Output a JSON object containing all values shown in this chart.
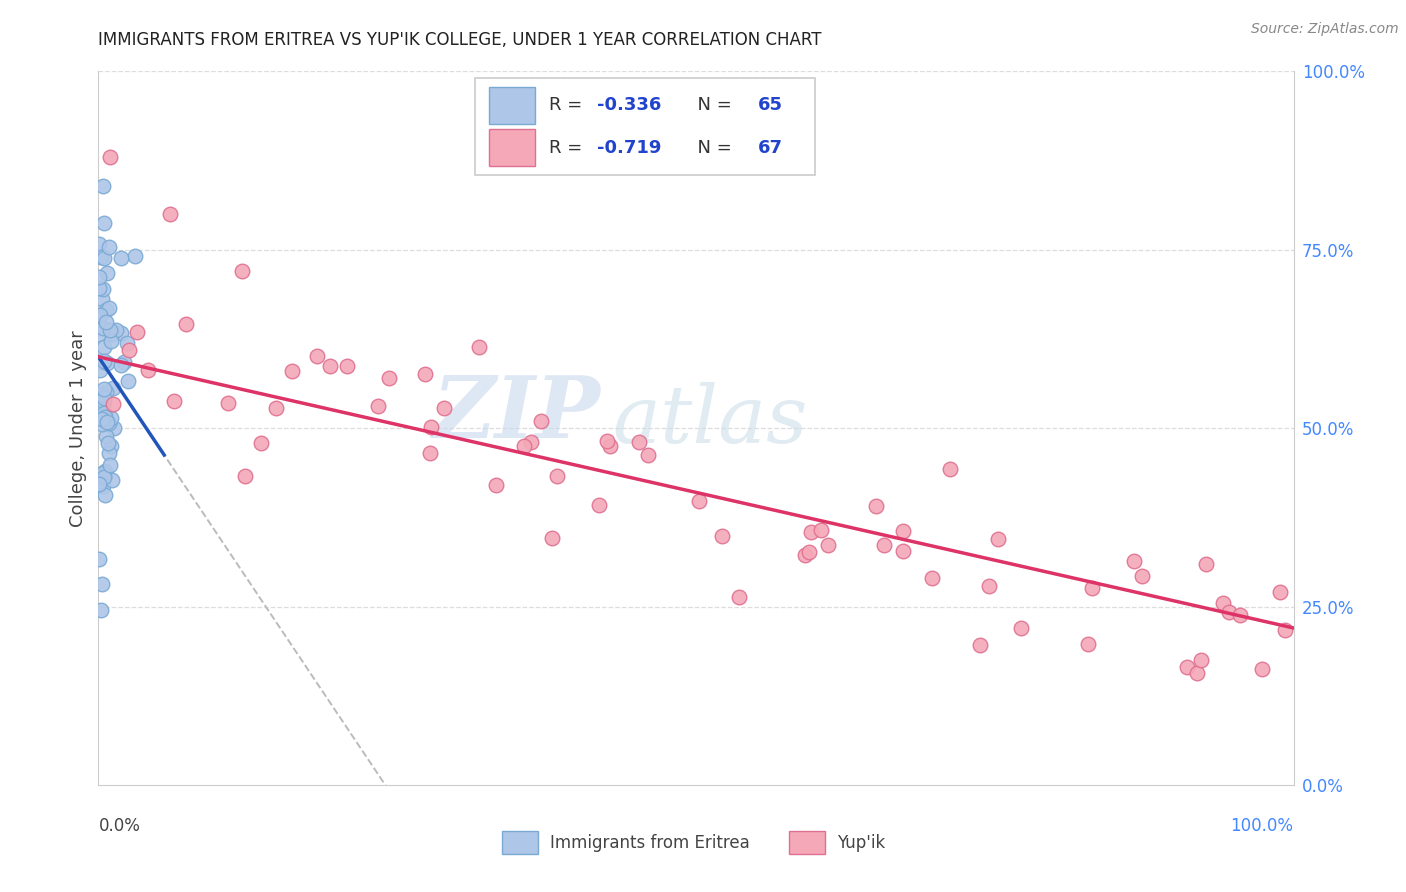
{
  "title": "IMMIGRANTS FROM ERITREA VS YUP'IK COLLEGE, UNDER 1 YEAR CORRELATION CHART",
  "source": "Source: ZipAtlas.com",
  "ylabel": "College, Under 1 year",
  "legend_eritrea_R": "-0.336",
  "legend_eritrea_N": "65",
  "legend_yupik_R": "-0.719",
  "legend_yupik_N": "67",
  "watermark_zip": "ZIP",
  "watermark_atlas": "atlas",
  "eritrea_color": "#aec6e8",
  "eritrea_edge": "#7aaad4",
  "yupik_color": "#f4a8b8",
  "yupik_edge": "#e07090",
  "eritrea_line_color": "#2255bb",
  "yupik_line_color": "#dd3366",
  "dashed_line_color": "#bbbbbb",
  "background_color": "#ffffff",
  "grid_color": "#dddddd",
  "right_tick_color": "#4488ff",
  "title_color": "#222222",
  "source_color": "#888888",
  "legend_text_color": "#333333",
  "legend_value_color": "#2244cc"
}
